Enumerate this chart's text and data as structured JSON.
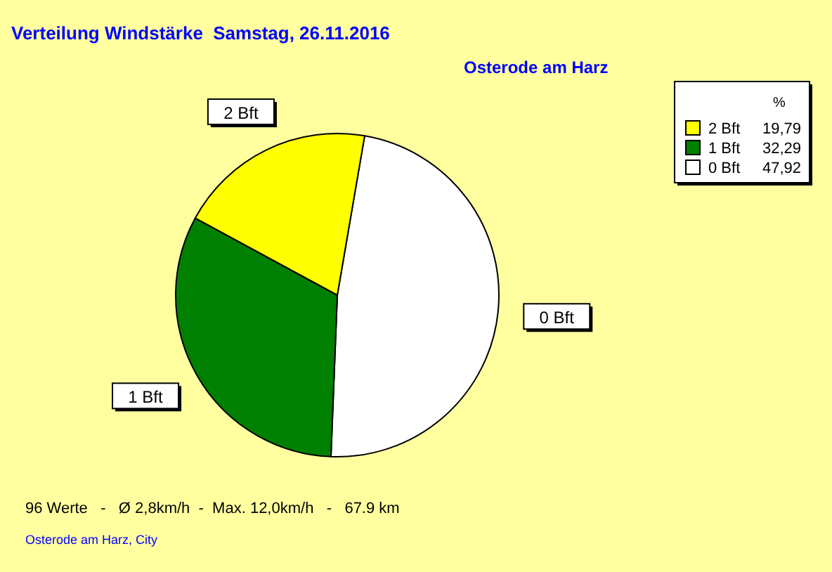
{
  "chart_data": {
    "type": "pie",
    "title": "Verteilung Windstärke  Samstag, 26.11.2016",
    "subtitle": "Osterode am Harz",
    "categories": [
      "0 Bft",
      "1 Bft",
      "2 Bft"
    ],
    "values": [
      47.92,
      32.29,
      19.79
    ],
    "value_labels": [
      "47,92",
      "32,29",
      "19,79"
    ],
    "colors": [
      "#ffffff",
      "#008000",
      "#ffff00"
    ],
    "legend": "top right",
    "legend_title": "%",
    "annotations": [
      "96 Werte   -   Ø 2,8km/h  -  Max. 12,0km/h   -   67.9 km",
      "Osterode am Harz, City"
    ]
  }
}
